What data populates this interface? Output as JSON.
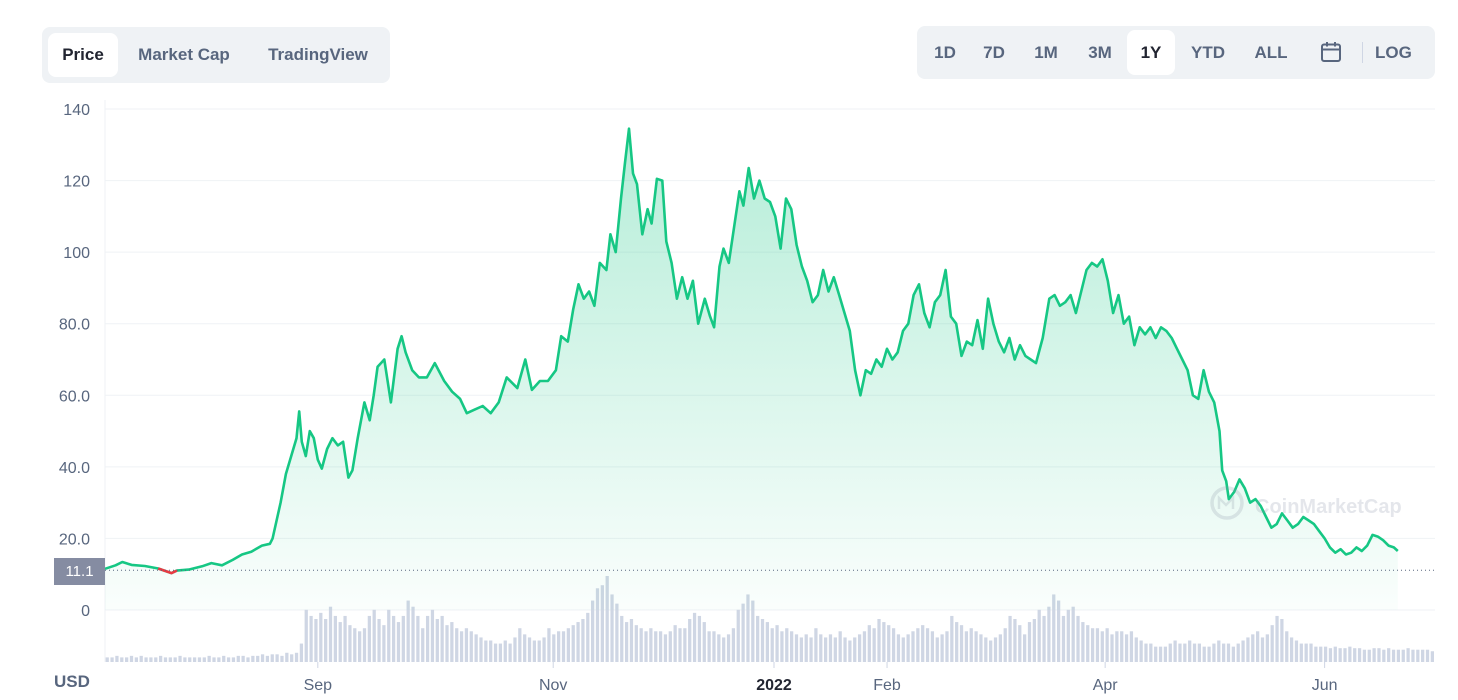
{
  "tabs": [
    {
      "label": "Price",
      "active": true
    },
    {
      "label": "Market Cap",
      "active": false
    },
    {
      "label": "TradingView",
      "active": false
    }
  ],
  "ranges": [
    {
      "label": "1D",
      "active": false
    },
    {
      "label": "7D",
      "active": false
    },
    {
      "label": "1M",
      "active": false
    },
    {
      "label": "3M",
      "active": false
    },
    {
      "label": "1Y",
      "active": true
    },
    {
      "label": "YTD",
      "active": false
    },
    {
      "label": "ALL",
      "active": false
    }
  ],
  "calendar_icon": "calendar-icon",
  "log_label": "LOG",
  "currency_label": "USD",
  "current_price_label": "11.1",
  "watermark": "CoinMarketCap",
  "colors": {
    "line": "#16c784",
    "line_down": "#ea3943",
    "volume": "#cfd6e4",
    "grid": "#eff2f5",
    "axis_text": "#58667e"
  },
  "chart_data": {
    "type": "area",
    "price_axis": {
      "ylim": [
        0,
        140
      ],
      "ticks": [
        "0",
        "20.0",
        "40.0",
        "60.0",
        "80.0",
        "100",
        "120",
        "140"
      ]
    },
    "x_ticks": [
      {
        "label": "Sep",
        "t": 0.16
      },
      {
        "label": "Nov",
        "t": 0.337
      },
      {
        "label": "2022",
        "t": 0.503,
        "bold": true
      },
      {
        "label": "Feb",
        "t": 0.588
      },
      {
        "label": "Apr",
        "t": 0.752
      },
      {
        "label": "Jun",
        "t": 0.917
      }
    ],
    "baseline": 11.1,
    "price": [
      [
        0.0,
        11.5
      ],
      [
        0.008,
        12.5
      ],
      [
        0.013,
        13.4
      ],
      [
        0.02,
        12.6
      ],
      [
        0.03,
        12.3
      ],
      [
        0.04,
        11.6
      ],
      [
        0.05,
        10.3
      ],
      [
        0.054,
        11.0
      ],
      [
        0.063,
        11.3
      ],
      [
        0.073,
        12.2
      ],
      [
        0.08,
        13.1
      ],
      [
        0.088,
        12.5
      ],
      [
        0.096,
        14.0
      ],
      [
        0.103,
        15.5
      ],
      [
        0.11,
        16.3
      ],
      [
        0.118,
        18.0
      ],
      [
        0.124,
        18.5
      ],
      [
        0.126,
        20.0
      ],
      [
        0.129,
        25.0
      ],
      [
        0.132,
        30.0
      ],
      [
        0.136,
        38.0
      ],
      [
        0.14,
        43.0
      ],
      [
        0.144,
        48.0
      ],
      [
        0.146,
        55.5
      ],
      [
        0.148,
        47.0
      ],
      [
        0.151,
        43.0
      ],
      [
        0.154,
        50.0
      ],
      [
        0.157,
        48.0
      ],
      [
        0.16,
        42.0
      ],
      [
        0.163,
        39.5
      ],
      [
        0.167,
        45.0
      ],
      [
        0.171,
        48.0
      ],
      [
        0.175,
        46.0
      ],
      [
        0.179,
        47.0
      ],
      [
        0.183,
        37.0
      ],
      [
        0.186,
        39.0
      ],
      [
        0.19,
        48.0
      ],
      [
        0.195,
        58.0
      ],
      [
        0.199,
        53.0
      ],
      [
        0.202,
        60.0
      ],
      [
        0.205,
        68.0
      ],
      [
        0.21,
        70.0
      ],
      [
        0.215,
        58.0
      ],
      [
        0.22,
        73.0
      ],
      [
        0.223,
        76.5
      ],
      [
        0.226,
        72.0
      ],
      [
        0.231,
        67.0
      ],
      [
        0.236,
        65.0
      ],
      [
        0.242,
        65.0
      ],
      [
        0.248,
        69.0
      ],
      [
        0.255,
        64.0
      ],
      [
        0.261,
        61.0
      ],
      [
        0.267,
        59.0
      ],
      [
        0.272,
        55.0
      ],
      [
        0.278,
        56.0
      ],
      [
        0.284,
        57.0
      ],
      [
        0.29,
        55.0
      ],
      [
        0.296,
        58.0
      ],
      [
        0.302,
        65.0
      ],
      [
        0.31,
        62.0
      ],
      [
        0.316,
        70.0
      ],
      [
        0.321,
        61.5
      ],
      [
        0.327,
        64.0
      ],
      [
        0.333,
        64.0
      ],
      [
        0.339,
        67.0
      ],
      [
        0.343,
        76.5
      ],
      [
        0.348,
        75.0
      ],
      [
        0.352,
        84.0
      ],
      [
        0.356,
        91.0
      ],
      [
        0.36,
        87.0
      ],
      [
        0.364,
        89.0
      ],
      [
        0.368,
        85.0
      ],
      [
        0.372,
        97.0
      ],
      [
        0.377,
        95.0
      ],
      [
        0.38,
        105.0
      ],
      [
        0.384,
        100.0
      ],
      [
        0.388,
        115.0
      ],
      [
        0.391,
        125.0
      ],
      [
        0.394,
        134.5
      ],
      [
        0.397,
        122.0
      ],
      [
        0.4,
        119.0
      ],
      [
        0.404,
        105.0
      ],
      [
        0.408,
        112.0
      ],
      [
        0.411,
        108.0
      ],
      [
        0.415,
        120.5
      ],
      [
        0.419,
        120.0
      ],
      [
        0.422,
        103.0
      ],
      [
        0.426,
        97.0
      ],
      [
        0.43,
        87.0
      ],
      [
        0.434,
        93.0
      ],
      [
        0.438,
        87.0
      ],
      [
        0.442,
        92.0
      ],
      [
        0.446,
        80.0
      ],
      [
        0.451,
        87.0
      ],
      [
        0.455,
        82.0
      ],
      [
        0.458,
        79.0
      ],
      [
        0.462,
        96.0
      ],
      [
        0.465,
        101.0
      ],
      [
        0.469,
        97.0
      ],
      [
        0.473,
        107.0
      ],
      [
        0.477,
        117.0
      ],
      [
        0.48,
        113.0
      ],
      [
        0.484,
        123.5
      ],
      [
        0.488,
        115.0
      ],
      [
        0.492,
        120.0
      ],
      [
        0.496,
        115.0
      ],
      [
        0.5,
        114.0
      ],
      [
        0.504,
        110.0
      ],
      [
        0.508,
        101.0
      ],
      [
        0.512,
        115.0
      ],
      [
        0.516,
        112.0
      ],
      [
        0.52,
        102.0
      ],
      [
        0.524,
        96.0
      ],
      [
        0.528,
        92.0
      ],
      [
        0.532,
        86.0
      ],
      [
        0.536,
        88.0
      ],
      [
        0.54,
        95.0
      ],
      [
        0.544,
        89.0
      ],
      [
        0.548,
        93.0
      ],
      [
        0.552,
        88.0
      ],
      [
        0.556,
        83.0
      ],
      [
        0.56,
        78.0
      ],
      [
        0.564,
        67.0
      ],
      [
        0.568,
        60.0
      ],
      [
        0.572,
        67.0
      ],
      [
        0.576,
        66.0
      ],
      [
        0.58,
        70.0
      ],
      [
        0.584,
        68.0
      ],
      [
        0.588,
        73.0
      ],
      [
        0.592,
        70.0
      ],
      [
        0.596,
        72.0
      ],
      [
        0.6,
        78.0
      ],
      [
        0.604,
        80.0
      ],
      [
        0.608,
        88.0
      ],
      [
        0.612,
        91.0
      ],
      [
        0.616,
        83.0
      ],
      [
        0.62,
        79.0
      ],
      [
        0.624,
        86.0
      ],
      [
        0.628,
        88.0
      ],
      [
        0.632,
        95.0
      ],
      [
        0.636,
        82.0
      ],
      [
        0.64,
        80.0
      ],
      [
        0.644,
        71.0
      ],
      [
        0.648,
        75.0
      ],
      [
        0.652,
        74.0
      ],
      [
        0.656,
        81.0
      ],
      [
        0.66,
        73.0
      ],
      [
        0.664,
        87.0
      ],
      [
        0.668,
        80.0
      ],
      [
        0.672,
        75.0
      ],
      [
        0.676,
        72.0
      ],
      [
        0.68,
        76.0
      ],
      [
        0.684,
        70.0
      ],
      [
        0.688,
        74.0
      ],
      [
        0.692,
        71.0
      ],
      [
        0.696,
        70.0
      ],
      [
        0.7,
        69.0
      ],
      [
        0.705,
        76.0
      ],
      [
        0.71,
        87.0
      ],
      [
        0.714,
        88.0
      ],
      [
        0.718,
        85.0
      ],
      [
        0.722,
        86.0
      ],
      [
        0.726,
        88.0
      ],
      [
        0.73,
        83.0
      ],
      [
        0.734,
        89.0
      ],
      [
        0.738,
        95.0
      ],
      [
        0.742,
        97.0
      ],
      [
        0.746,
        96.0
      ],
      [
        0.75,
        98.0
      ],
      [
        0.754,
        92.0
      ],
      [
        0.758,
        83.0
      ],
      [
        0.762,
        88.0
      ],
      [
        0.766,
        80.0
      ],
      [
        0.77,
        82.0
      ],
      [
        0.774,
        74.0
      ],
      [
        0.778,
        79.0
      ],
      [
        0.782,
        77.0
      ],
      [
        0.786,
        79.0
      ],
      [
        0.79,
        76.0
      ],
      [
        0.794,
        79.0
      ],
      [
        0.798,
        78.0
      ],
      [
        0.802,
        76.0
      ],
      [
        0.806,
        73.0
      ],
      [
        0.81,
        70.0
      ],
      [
        0.814,
        67.0
      ],
      [
        0.818,
        60.0
      ],
      [
        0.822,
        59.0
      ],
      [
        0.826,
        67.0
      ],
      [
        0.83,
        61.0
      ],
      [
        0.834,
        58.0
      ],
      [
        0.838,
        50.0
      ],
      [
        0.84,
        39.0
      ],
      [
        0.843,
        36.0
      ],
      [
        0.845,
        31.0
      ],
      [
        0.849,
        33.0
      ],
      [
        0.853,
        36.5
      ],
      [
        0.857,
        34.0
      ],
      [
        0.861,
        30.0
      ],
      [
        0.865,
        31.0
      ],
      [
        0.869,
        29.0
      ],
      [
        0.873,
        26.0
      ],
      [
        0.877,
        23.0
      ],
      [
        0.881,
        24.0
      ],
      [
        0.885,
        27.0
      ],
      [
        0.889,
        25.0
      ],
      [
        0.893,
        23.0
      ],
      [
        0.897,
        24.0
      ],
      [
        0.901,
        26.0
      ],
      [
        0.905,
        25.0
      ],
      [
        0.909,
        24.0
      ],
      [
        0.913,
        22.0
      ],
      [
        0.917,
        20.0
      ],
      [
        0.921,
        17.5
      ],
      [
        0.925,
        16.0
      ],
      [
        0.929,
        17.0
      ],
      [
        0.933,
        15.5
      ],
      [
        0.937,
        16.0
      ],
      [
        0.941,
        17.5
      ],
      [
        0.945,
        16.5
      ],
      [
        0.949,
        18.0
      ],
      [
        0.953,
        21.0
      ],
      [
        0.957,
        20.5
      ],
      [
        0.961,
        19.5
      ],
      [
        0.965,
        18.0
      ],
      [
        0.969,
        17.5
      ],
      [
        0.972,
        16.5
      ]
    ],
    "volume": [
      3,
      3,
      4,
      3,
      3,
      4,
      3,
      4,
      3,
      3,
      3,
      4,
      3,
      3,
      3,
      4,
      3,
      3,
      3,
      3,
      3,
      4,
      3,
      3,
      4,
      3,
      3,
      4,
      4,
      3,
      4,
      4,
      5,
      4,
      5,
      5,
      4,
      6,
      5,
      6,
      12,
      34,
      30,
      28,
      32,
      28,
      36,
      30,
      26,
      30,
      24,
      22,
      20,
      22,
      30,
      34,
      28,
      24,
      34,
      30,
      26,
      30,
      40,
      36,
      30,
      22,
      30,
      34,
      28,
      30,
      24,
      26,
      22,
      20,
      22,
      20,
      18,
      16,
      14,
      14,
      12,
      12,
      14,
      12,
      16,
      22,
      18,
      16,
      14,
      14,
      16,
      22,
      18,
      20,
      20,
      22,
      24,
      26,
      28,
      32,
      40,
      48,
      50,
      56,
      44,
      38,
      30,
      26,
      28,
      24,
      22,
      20,
      22,
      20,
      20,
      18,
      20,
      24,
      22,
      22,
      28,
      32,
      30,
      26,
      20,
      20,
      18,
      16,
      18,
      22,
      34,
      38,
      44,
      40,
      30,
      28,
      26,
      22,
      24,
      20,
      22,
      20,
      18,
      16,
      18,
      16,
      22,
      18,
      16,
      18,
      16,
      20,
      16,
      14,
      16,
      18,
      20,
      24,
      22,
      28,
      26,
      24,
      22,
      18,
      16,
      18,
      20,
      22,
      24,
      22,
      20,
      16,
      18,
      20,
      30,
      26,
      24,
      20,
      22,
      20,
      18,
      16,
      14,
      16,
      18,
      22,
      30,
      28,
      24,
      18,
      26,
      28,
      34,
      30,
      36,
      44,
      40,
      30,
      34,
      36,
      30,
      26,
      24,
      22,
      22,
      20,
      22,
      18,
      20,
      20,
      18,
      20,
      16,
      14,
      12,
      12,
      10,
      10,
      10,
      12,
      14,
      12,
      12,
      14,
      12,
      12,
      10,
      10,
      12,
      14,
      12,
      12,
      10,
      12,
      14,
      16,
      18,
      20,
      16,
      18,
      24,
      30,
      28,
      20,
      16,
      14,
      12,
      12,
      12,
      10,
      10,
      10,
      9,
      10,
      9,
      9,
      10,
      9,
      9,
      8,
      8,
      9,
      9,
      8,
      9,
      8,
      8,
      8,
      9,
      8,
      8,
      8,
      8,
      7
    ]
  }
}
